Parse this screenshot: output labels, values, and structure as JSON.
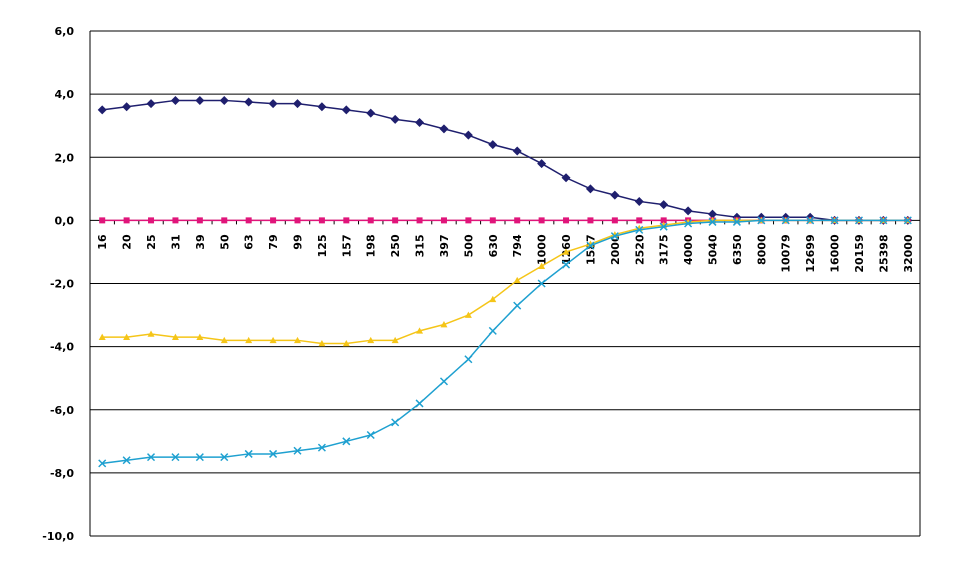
{
  "chart_data": {
    "type": "line",
    "title": "",
    "xlabel": "",
    "ylabel": "",
    "ylim": [
      -10,
      6
    ],
    "y_ticks": [
      6,
      4,
      2,
      0,
      -2,
      -4,
      -6,
      -8,
      -10
    ],
    "y_tick_labels": [
      "6,0",
      "4,0",
      "2,0",
      "0,0",
      "-2,0",
      "-4,0",
      "-6,0",
      "-8,0",
      "-10,0"
    ],
    "grid": true,
    "legend": "none",
    "categories": [
      "16",
      "20",
      "25",
      "31",
      "39",
      "50",
      "63",
      "79",
      "99",
      "125",
      "157",
      "198",
      "250",
      "315",
      "397",
      "500",
      "630",
      "794",
      "1000",
      "1260",
      "1587",
      "2000",
      "2520",
      "3175",
      "4000",
      "5040",
      "6350",
      "8000",
      "10079",
      "12699",
      "16000",
      "20159",
      "25398",
      "32000"
    ],
    "series": [
      {
        "color": "#1f1f6e",
        "marker": "diamond",
        "values": [
          3.5,
          3.6,
          3.7,
          3.8,
          3.8,
          3.8,
          3.75,
          3.7,
          3.7,
          3.6,
          3.5,
          3.4,
          3.2,
          3.1,
          2.9,
          2.7,
          2.4,
          2.2,
          1.8,
          1.35,
          1.0,
          0.8,
          0.6,
          0.5,
          0.3,
          0.2,
          0.1,
          0.1,
          0.1,
          0.1,
          0.0,
          0.0,
          0.0,
          0.0
        ]
      },
      {
        "color": "#e0157a",
        "marker": "square",
        "values": [
          0,
          0,
          0,
          0,
          0,
          0,
          0,
          0,
          0,
          0,
          0,
          0,
          0,
          0,
          0,
          0,
          0,
          0,
          0,
          0,
          0,
          0,
          0,
          0,
          0,
          0,
          0,
          0,
          0,
          0,
          0,
          0,
          0,
          0
        ]
      },
      {
        "color": "#f5c518",
        "marker": "triangle",
        "values": [
          -3.7,
          -3.7,
          -3.6,
          -3.7,
          -3.7,
          -3.8,
          -3.8,
          -3.8,
          -3.8,
          -3.9,
          -3.9,
          -3.8,
          -3.8,
          -3.5,
          -3.3,
          -3.0,
          -2.5,
          -1.9,
          -1.45,
          -1.0,
          -0.75,
          -0.45,
          -0.25,
          -0.15,
          -0.05,
          0.0,
          0.0,
          0.0,
          0.0,
          0.0,
          0.0,
          0.0,
          0.0,
          0.0
        ]
      },
      {
        "color": "#1ea0d0",
        "marker": "x",
        "values": [
          -7.7,
          -7.6,
          -7.5,
          -7.5,
          -7.5,
          -7.5,
          -7.4,
          -7.4,
          -7.3,
          -7.2,
          -7.0,
          -6.8,
          -6.4,
          -5.8,
          -5.1,
          -4.4,
          -3.5,
          -2.7,
          -2.0,
          -1.4,
          -0.8,
          -0.5,
          -0.3,
          -0.2,
          -0.1,
          -0.05,
          -0.05,
          0.0,
          0.0,
          0.0,
          0.0,
          0.0,
          0.0,
          0.0
        ]
      }
    ]
  }
}
